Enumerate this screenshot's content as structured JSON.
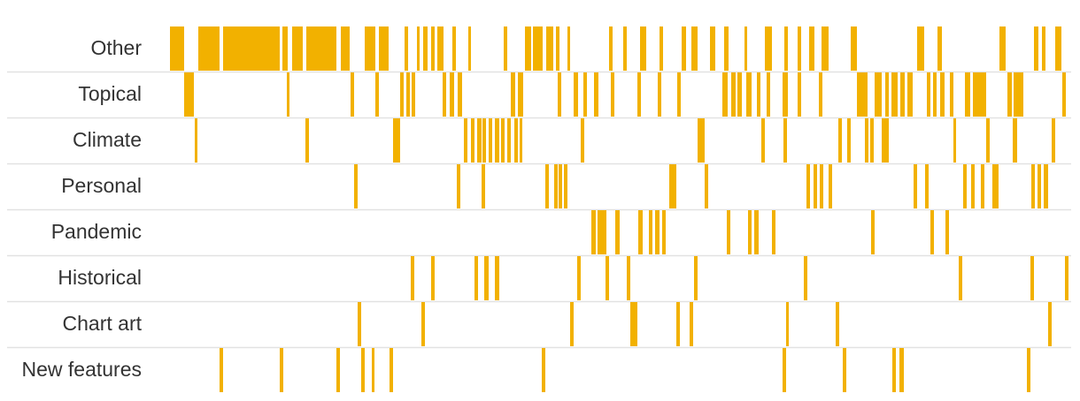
{
  "chart_data": {
    "type": "strip",
    "title": "",
    "xlabel": "",
    "ylabel": "",
    "color": "#f2b100",
    "categories": [
      "Other",
      "Topical",
      "Climate",
      "Personal",
      "Pandemic",
      "Historical",
      "Chart art",
      "New features"
    ],
    "rows": [
      {
        "label": "Other",
        "marks": [
          [
            192,
            208
          ],
          [
            224,
            248
          ],
          [
            252,
            316
          ],
          [
            319,
            325
          ],
          [
            330,
            342
          ],
          [
            346,
            380
          ],
          [
            385,
            395
          ],
          [
            412,
            424
          ],
          [
            428,
            439
          ],
          [
            457,
            461
          ],
          [
            471,
            474
          ],
          [
            478,
            483
          ],
          [
            487,
            491
          ],
          [
            494,
            501
          ],
          [
            511,
            515
          ],
          [
            529,
            532
          ],
          [
            569,
            573
          ],
          [
            593,
            600
          ],
          [
            602,
            613
          ],
          [
            617,
            625
          ],
          [
            628,
            632
          ],
          [
            641,
            644
          ],
          [
            688,
            692
          ],
          [
            704,
            708
          ],
          [
            723,
            730
          ],
          [
            745,
            749
          ],
          [
            770,
            775
          ],
          [
            781,
            788
          ],
          [
            802,
            808
          ],
          [
            818,
            823
          ],
          [
            841,
            844
          ],
          [
            864,
            872
          ],
          [
            886,
            890
          ],
          [
            901,
            905
          ],
          [
            914,
            920
          ],
          [
            928,
            936
          ],
          [
            961,
            968
          ],
          [
            1036,
            1044
          ],
          [
            1059,
            1064
          ],
          [
            1129,
            1136
          ],
          [
            1168,
            1173
          ],
          [
            1177,
            1181
          ],
          [
            1192,
            1199
          ]
        ]
      },
      {
        "label": "Topical",
        "marks": [
          [
            208,
            219
          ],
          [
            324,
            327
          ],
          [
            396,
            400
          ],
          [
            424,
            428
          ],
          [
            452,
            456
          ],
          [
            459,
            463
          ],
          [
            465,
            469
          ],
          [
            500,
            504
          ],
          [
            508,
            513
          ],
          [
            517,
            522
          ],
          [
            577,
            582
          ],
          [
            585,
            591
          ],
          [
            630,
            634
          ],
          [
            648,
            653
          ],
          [
            659,
            663
          ],
          [
            671,
            676
          ],
          [
            690,
            694
          ],
          [
            720,
            724
          ],
          [
            743,
            747
          ],
          [
            765,
            769
          ],
          [
            816,
            822
          ],
          [
            826,
            831
          ],
          [
            833,
            838
          ],
          [
            843,
            849
          ],
          [
            855,
            859
          ],
          [
            866,
            870
          ],
          [
            884,
            890
          ],
          [
            901,
            905
          ],
          [
            925,
            929
          ],
          [
            968,
            980
          ],
          [
            988,
            996
          ],
          [
            1000,
            1004
          ],
          [
            1007,
            1014
          ],
          [
            1017,
            1022
          ],
          [
            1025,
            1031
          ],
          [
            1047,
            1051
          ],
          [
            1054,
            1058
          ],
          [
            1062,
            1067
          ],
          [
            1073,
            1077
          ],
          [
            1090,
            1096
          ],
          [
            1099,
            1114
          ],
          [
            1138,
            1143
          ],
          [
            1145,
            1156
          ],
          [
            1200,
            1204
          ]
        ]
      },
      {
        "label": "Climate",
        "marks": [
          [
            220,
            223
          ],
          [
            345,
            349
          ],
          [
            444,
            452
          ],
          [
            524,
            528
          ],
          [
            532,
            536
          ],
          [
            539,
            544
          ],
          [
            545,
            549
          ],
          [
            552,
            556
          ],
          [
            559,
            564
          ],
          [
            566,
            570
          ],
          [
            573,
            577
          ],
          [
            581,
            585
          ],
          [
            587,
            590
          ],
          [
            656,
            660
          ],
          [
            788,
            796
          ],
          [
            860,
            864
          ],
          [
            885,
            889
          ],
          [
            947,
            951
          ],
          [
            957,
            961
          ],
          [
            977,
            981
          ],
          [
            983,
            987
          ],
          [
            996,
            1004
          ],
          [
            1077,
            1080
          ],
          [
            1114,
            1118
          ],
          [
            1144,
            1149
          ],
          [
            1188,
            1192
          ]
        ]
      },
      {
        "label": "Personal",
        "marks": [
          [
            400,
            404
          ],
          [
            516,
            520
          ],
          [
            544,
            548
          ],
          [
            616,
            620
          ],
          [
            626,
            630
          ],
          [
            631,
            635
          ],
          [
            637,
            641
          ],
          [
            756,
            764
          ],
          [
            796,
            800
          ],
          [
            911,
            915
          ],
          [
            919,
            923
          ],
          [
            926,
            930
          ],
          [
            936,
            940
          ],
          [
            1032,
            1036
          ],
          [
            1045,
            1049
          ],
          [
            1088,
            1092
          ],
          [
            1097,
            1101
          ],
          [
            1108,
            1112
          ],
          [
            1121,
            1128
          ],
          [
            1165,
            1169
          ],
          [
            1172,
            1176
          ],
          [
            1179,
            1184
          ]
        ]
      },
      {
        "label": "Pandemic",
        "marks": [
          [
            668,
            673
          ],
          [
            675,
            679
          ],
          [
            679,
            685
          ],
          [
            695,
            700
          ],
          [
            721,
            726
          ],
          [
            733,
            737
          ],
          [
            740,
            745
          ],
          [
            748,
            752
          ],
          [
            821,
            825
          ],
          [
            845,
            849
          ],
          [
            852,
            857
          ],
          [
            872,
            876
          ],
          [
            984,
            988
          ],
          [
            1051,
            1055
          ],
          [
            1068,
            1072
          ]
        ]
      },
      {
        "label": "Historical",
        "marks": [
          [
            464,
            468
          ],
          [
            487,
            491
          ],
          [
            536,
            540
          ],
          [
            547,
            552
          ],
          [
            559,
            564
          ],
          [
            652,
            656
          ],
          [
            684,
            688
          ],
          [
            708,
            712
          ],
          [
            784,
            788
          ],
          [
            908,
            912
          ],
          [
            1083,
            1087
          ],
          [
            1164,
            1168
          ],
          [
            1203,
            1207
          ]
        ]
      },
      {
        "label": "Chart art",
        "marks": [
          [
            404,
            408
          ],
          [
            476,
            480
          ],
          [
            644,
            648
          ],
          [
            712,
            720
          ],
          [
            764,
            768
          ],
          [
            779,
            783
          ],
          [
            888,
            891
          ],
          [
            944,
            948
          ],
          [
            1184,
            1188
          ]
        ]
      },
      {
        "label": "New features",
        "marks": [
          [
            248,
            252
          ],
          [
            316,
            320
          ],
          [
            380,
            384
          ],
          [
            408,
            412
          ],
          [
            420,
            423
          ],
          [
            440,
            444
          ],
          [
            612,
            616
          ],
          [
            884,
            888
          ],
          [
            952,
            956
          ],
          [
            1008,
            1012
          ],
          [
            1016,
            1021
          ],
          [
            1160,
            1164
          ]
        ]
      }
    ]
  }
}
